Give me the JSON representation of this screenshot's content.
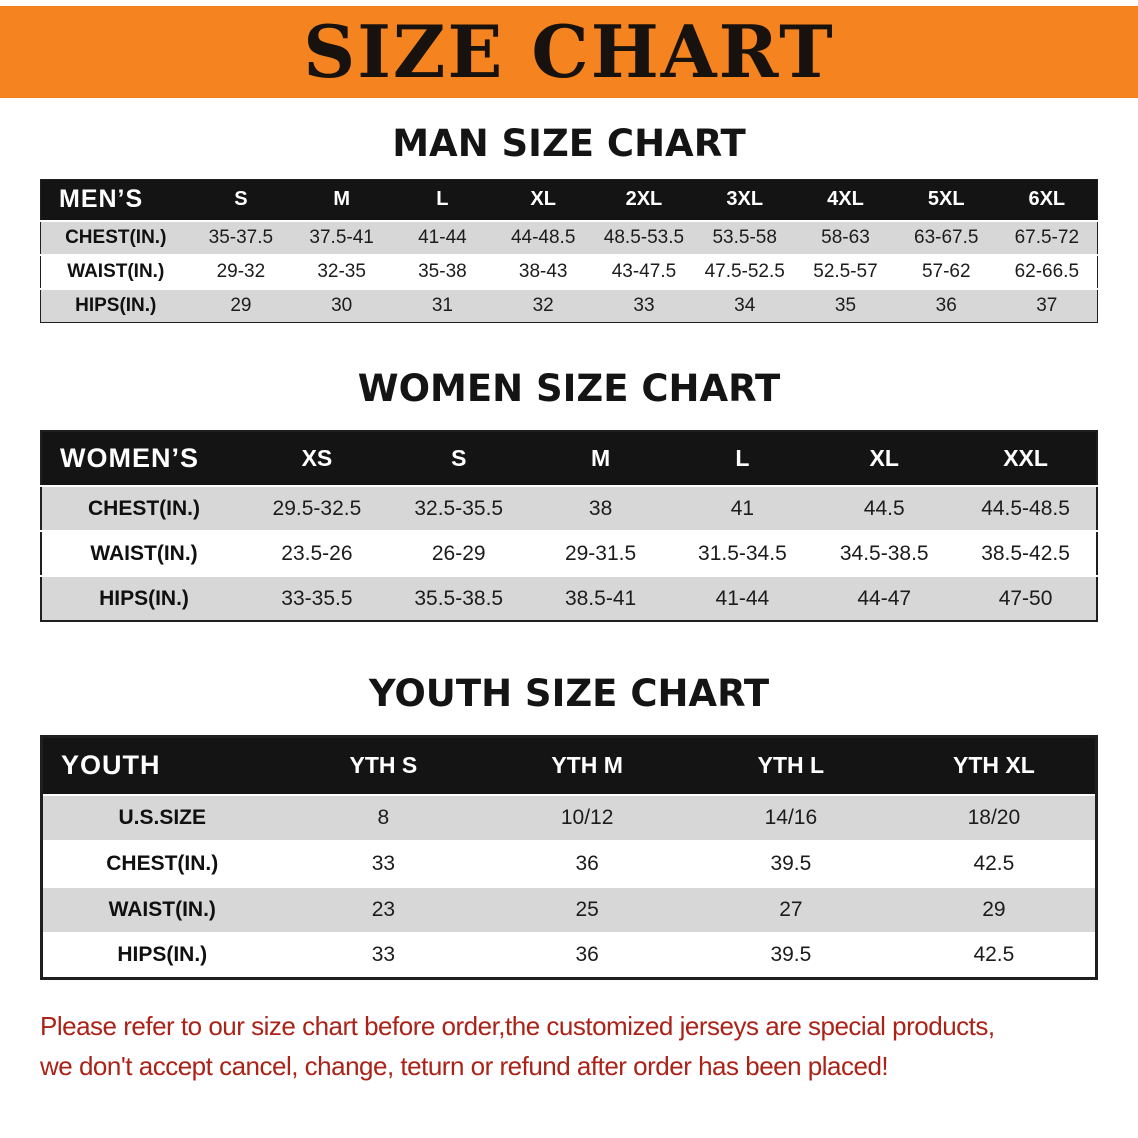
{
  "banner": {
    "title": "SIZE CHART",
    "bg_color": "#F5831F"
  },
  "sections": [
    {
      "id": "men",
      "heading": "MAN SIZE CHART",
      "table": {
        "header": [
          "MEN’S",
          "S",
          "M",
          "L",
          "XL",
          "2XL",
          "3XL",
          "4XL",
          "5XL",
          "6XL"
        ],
        "rows": [
          [
            "CHEST(IN.)",
            "35-37.5",
            "37.5-41",
            "41-44",
            "44-48.5",
            "48.5-53.5",
            "53.5-58",
            "58-63",
            "63-67.5",
            "67.5-72"
          ],
          [
            "WAIST(IN.)",
            "29-32",
            "32-35",
            "35-38",
            "38-43",
            "43-47.5",
            "47.5-52.5",
            "52.5-57",
            "57-62",
            "62-66.5"
          ],
          [
            "HIPS(IN.)",
            "29",
            "30",
            "31",
            "32",
            "33",
            "34",
            "35",
            "36",
            "37"
          ]
        ]
      }
    },
    {
      "id": "women",
      "heading": "WOMEN SIZE CHART",
      "table": {
        "header": [
          "WOMEN’S",
          "XS",
          "S",
          "M",
          "L",
          "XL",
          "XXL"
        ],
        "rows": [
          [
            "CHEST(IN.)",
            "29.5-32.5",
            "32.5-35.5",
            "38",
            "41",
            "44.5",
            "44.5-48.5"
          ],
          [
            "WAIST(IN.)",
            "23.5-26",
            "26-29",
            "29-31.5",
            "31.5-34.5",
            "34.5-38.5",
            "38.5-42.5"
          ],
          [
            "HIPS(IN.)",
            "33-35.5",
            "35.5-38.5",
            "38.5-41",
            "41-44",
            "44-47",
            "47-50"
          ]
        ]
      }
    },
    {
      "id": "youth",
      "heading": "YOUTH SIZE CHART",
      "table": {
        "header": [
          "YOUTH",
          "YTH S",
          "YTH M",
          "YTH L",
          "YTH XL"
        ],
        "rows": [
          [
            "U.S.SIZE",
            "8",
            "10/12",
            "14/16",
            "18/20"
          ],
          [
            "CHEST(IN.)",
            "33",
            "36",
            "39.5",
            "42.5"
          ],
          [
            "WAIST(IN.)",
            "23",
            "25",
            "27",
            "29"
          ],
          [
            "HIPS(IN.)",
            "33",
            "36",
            "39.5",
            "42.5"
          ]
        ]
      }
    }
  ],
  "footer": {
    "lines": [
      "Please refer to our size chart before order,the customized jerseys are special products,",
      "we don't accept cancel, change, teturn or refund after order has been placed!"
    ],
    "text_color": "#AB2318"
  },
  "colors": {
    "accent_orange": "#F5831F",
    "header_bar": "#141414",
    "row_shaded": "#D7D7D7"
  }
}
